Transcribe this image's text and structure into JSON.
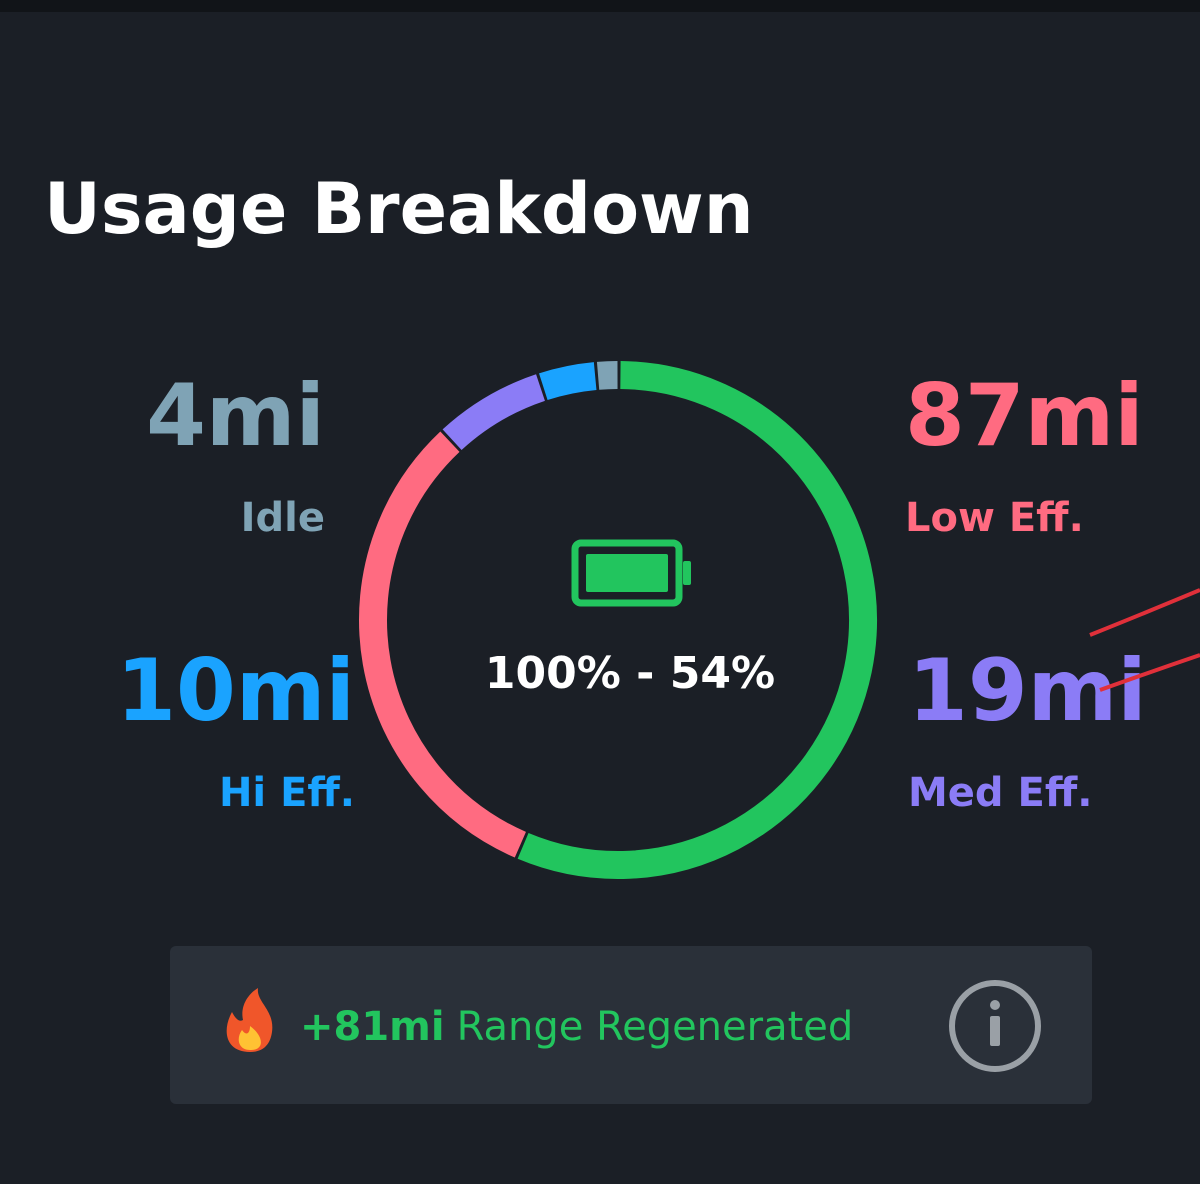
{
  "header": {
    "title": "Usage Breakdown"
  },
  "stats": [
    {
      "value": 4,
      "value_label": "4mi",
      "label": "Idle",
      "color": "#7fa3b5"
    },
    {
      "value": 10,
      "value_label": "10mi",
      "label": "Hi Eff.",
      "color": "#1aa3ff"
    },
    {
      "value": 87,
      "value_label": "87mi",
      "label": "Low Eff.",
      "color": "#ff6b81"
    },
    {
      "value": 19,
      "value_label": "19mi",
      "label": "Med Eff.",
      "color": "#8b7cf6"
    }
  ],
  "ring": {
    "type": "donut",
    "rest": {
      "value": 155,
      "color": "#22c55e"
    },
    "order": [
      2,
      3,
      1,
      0
    ]
  },
  "battery": {
    "label": "100% - 54%",
    "color": "#22c55e"
  },
  "regen": {
    "value": 81,
    "value_label": "+81mi",
    "label": "Range Regenerated",
    "color": "#22c55e"
  }
}
